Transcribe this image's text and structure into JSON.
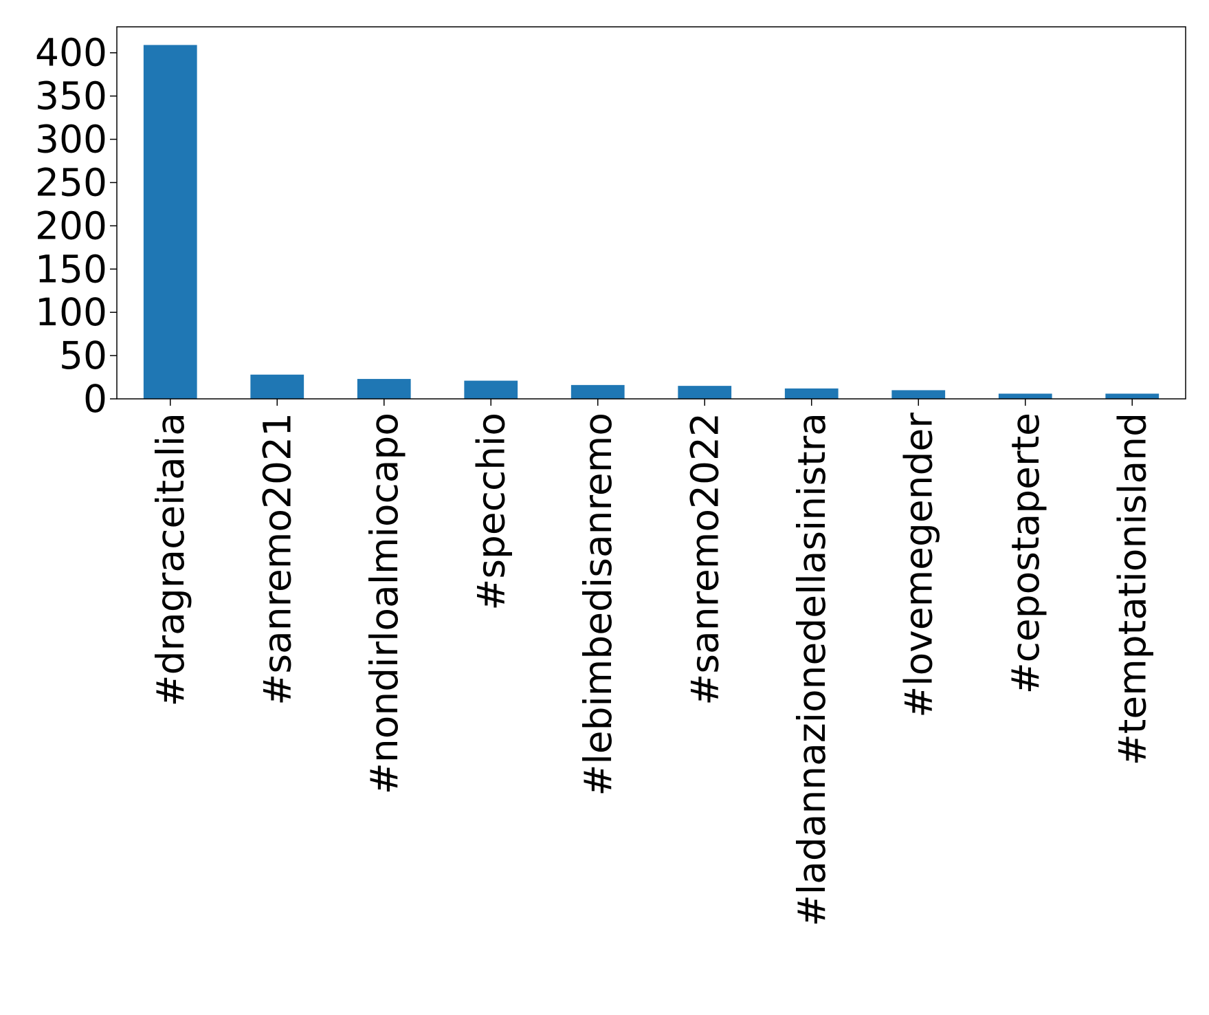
{
  "chart_data": {
    "type": "bar",
    "title": "",
    "xlabel": "",
    "ylabel": "",
    "categories": [
      "#dragraceitalia",
      "#sanremo2021",
      "#nondirloalmiocapo",
      "#specchio",
      "#lebimbedisanremo",
      "#sanremo2022",
      "#ladannazionedellasinistra",
      "#lovemegender",
      "#cepostaperte",
      "#temptationisland"
    ],
    "values": [
      409,
      28,
      23,
      21,
      16,
      15,
      12,
      10,
      6,
      6
    ],
    "ylim": [
      0,
      430
    ],
    "yticks": [
      0,
      50,
      100,
      150,
      200,
      250,
      300,
      350,
      400
    ],
    "bar_color": "#1f77b4",
    "grid": false,
    "legend": "none"
  }
}
